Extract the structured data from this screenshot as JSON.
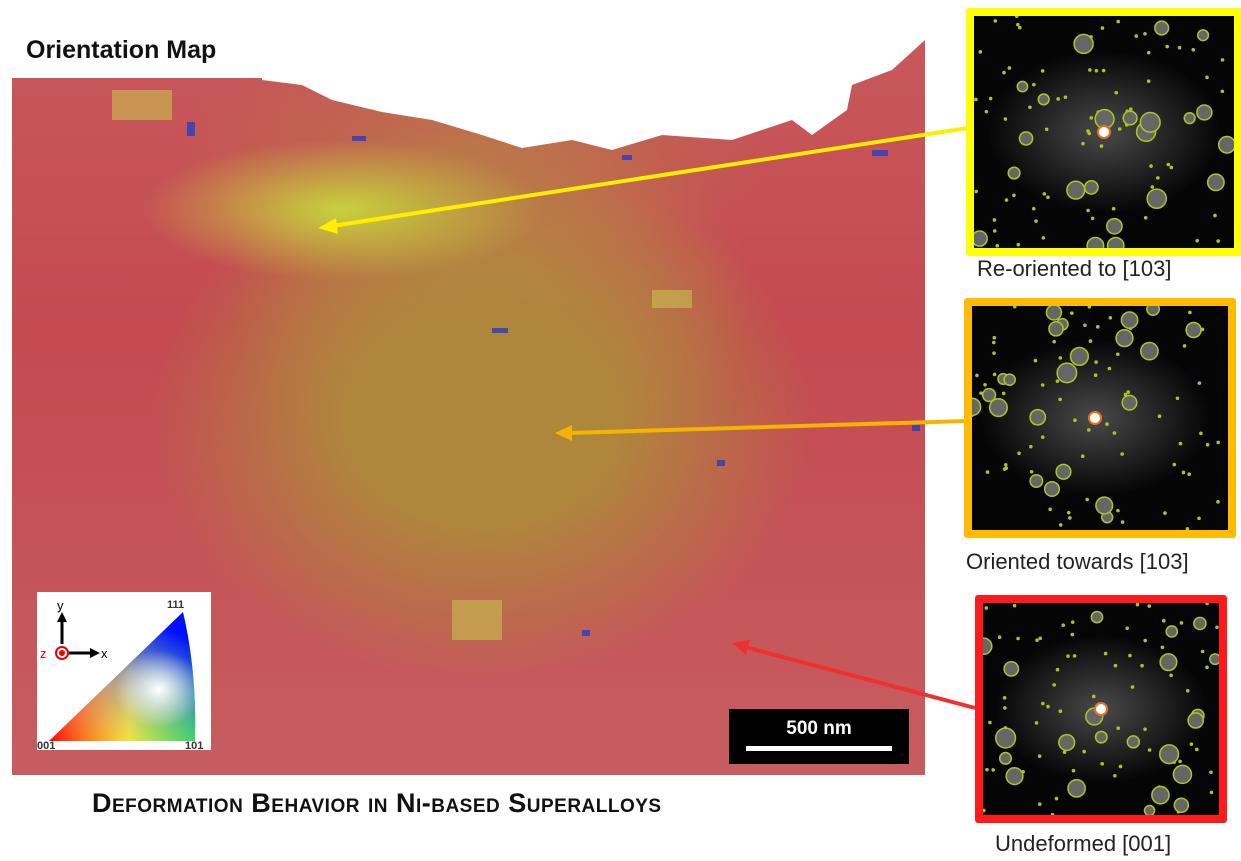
{
  "title": "Orientation Map",
  "caption": "Deformation Behavior in Ni-based Superalloys",
  "scale_bar": "500 nm",
  "ipf_legend": {
    "axes": {
      "x": "x",
      "y": "y",
      "z": "z"
    },
    "corners": {
      "c001": "001",
      "c101": "101",
      "c111": "111"
    }
  },
  "panels": [
    {
      "label": "Re-oriented to [103]",
      "color": "#ffff00"
    },
    {
      "label": "Oriented towards [103]",
      "color": "#ffbb00"
    },
    {
      "label": "Undeformed [001]",
      "color": "#ff1a1a"
    }
  ],
  "colors": {
    "spot_ring": "#a8c820",
    "center_ring": "#e87020"
  }
}
